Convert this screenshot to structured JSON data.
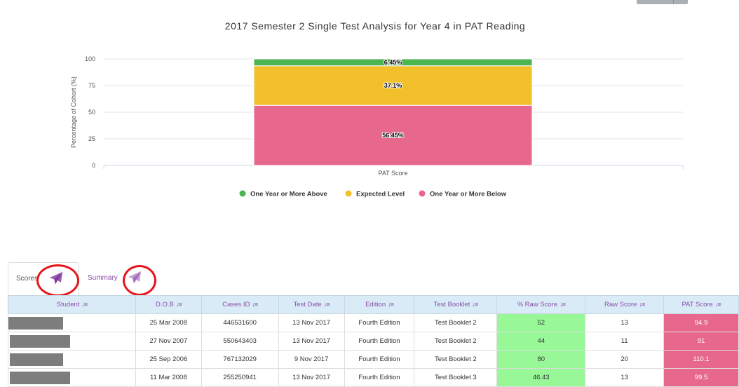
{
  "chart_data": {
    "type": "bar",
    "stacked": true,
    "title": "2017 Semester 2 Single Test Analysis for Year 4 in PAT Reading",
    "ylabel": "Percentage of Cohort (%)",
    "xlabel": "",
    "categories": [
      "PAT Score"
    ],
    "ylim": [
      0,
      100
    ],
    "yticks": [
      0,
      25,
      50,
      75,
      100
    ],
    "grid": true,
    "legend_position": "bottom",
    "series": [
      {
        "name": "One Year or More Below",
        "values": [
          56.45
        ],
        "label": "56.45%",
        "color": "#e8688d"
      },
      {
        "name": "Expected Level",
        "values": [
          37.1
        ],
        "label": "37.1%",
        "color": "#f1c02b"
      },
      {
        "name": "One Year or More Above",
        "values": [
          6.45
        ],
        "label": "6.45%",
        "color": "#4cb450"
      }
    ],
    "legend_order": [
      "One Year or More Above",
      "Expected Level",
      "One Year or More Below"
    ]
  },
  "tabs": [
    {
      "label": "Scores",
      "icon": "paper-plane-icon"
    },
    {
      "label": "Summary",
      "icon": "paper-plane-icon"
    }
  ],
  "table": {
    "columns": [
      "Student",
      "D.O.B",
      "Cases ID",
      "Test Date",
      "Edition",
      "Test Booklet",
      "% Raw Score",
      "Raw Score",
      "PAT Score"
    ],
    "sort_icon": "↓≡",
    "rows": [
      {
        "dob": "25 Mar 2008",
        "case_id": "446531600",
        "test_date": "13 Nov 2017",
        "edition": "Fourth Edition",
        "booklet": "Test Booklet 2",
        "raw_pct": "52",
        "raw": "13",
        "pat": "94.9"
      },
      {
        "dob": "27 Nov 2007",
        "case_id": "550643403",
        "test_date": "13 Nov 2017",
        "edition": "Fourth Edition",
        "booklet": "Test Booklet 2",
        "raw_pct": "44",
        "raw": "11",
        "pat": "91"
      },
      {
        "dob": "25 Sep 2006",
        "case_id": "767132029",
        "test_date": "9 Nov 2017",
        "edition": "Fourth Edition",
        "booklet": "Test Booklet 2",
        "raw_pct": "80",
        "raw": "20",
        "pat": "110.1"
      },
      {
        "dob": "11 Mar 2008",
        "case_id": "255250941",
        "test_date": "13 Nov 2017",
        "edition": "Fourth Edition",
        "booklet": "Test Booklet 3",
        "raw_pct": "46.43",
        "raw": "13",
        "pat": "99.5"
      }
    ]
  },
  "colors": {
    "accent": "#8a4fa8",
    "header_bg": "#d9ebf7",
    "raw_pct_bg": "#98f898",
    "pat_bg": "#e8688d",
    "annotation_circle": "#e8141c"
  }
}
